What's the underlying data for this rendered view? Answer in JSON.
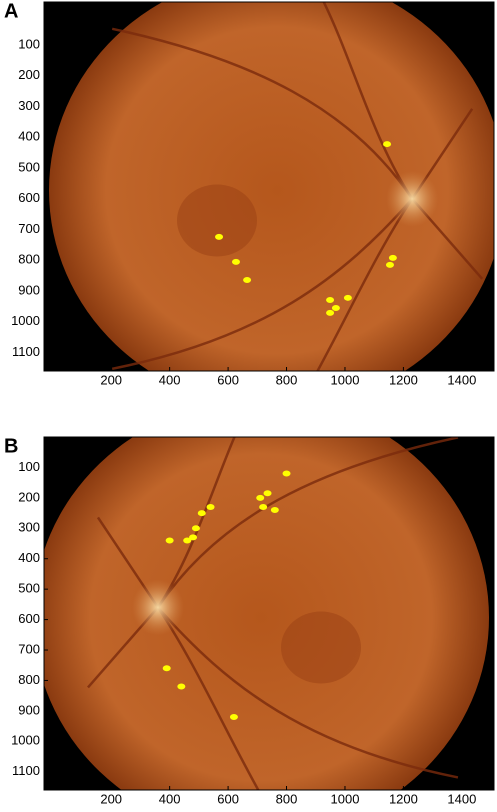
{
  "chart_data": [
    {
      "type": "scatter",
      "label": "A",
      "color": "#ffff00",
      "x": [
        1144,
        569,
        627,
        665,
        1154,
        1164,
        949,
        969,
        1010,
        949
      ],
      "y": [
        422,
        724,
        805,
        864,
        815,
        792,
        929,
        955,
        922,
        971
      ],
      "xlim": [
        -30,
        1510
      ],
      "ylim": [
        1160,
        -40
      ],
      "xticks": [
        200,
        400,
        600,
        800,
        1000,
        1200,
        1400
      ],
      "yticks": [
        100,
        200,
        300,
        400,
        500,
        600,
        700,
        800,
        900,
        1000,
        1100
      ]
    },
    {
      "type": "scatter",
      "label": "B",
      "color": "#ffff00",
      "x": [
        800,
        710,
        735,
        720,
        760,
        540,
        510,
        490,
        460,
        400,
        480,
        390,
        440,
        620
      ],
      "y": [
        120,
        200,
        185,
        230,
        240,
        230,
        250,
        300,
        340,
        340,
        330,
        760,
        820,
        920
      ],
      "xlim": [
        -30,
        1510
      ],
      "ylim": [
        1160,
        0
      ],
      "xticks": [
        200,
        400,
        600,
        800,
        1000,
        1200,
        1400
      ],
      "yticks": [
        100,
        200,
        300,
        400,
        500,
        600,
        700,
        800,
        900,
        1000,
        1100
      ]
    }
  ]
}
